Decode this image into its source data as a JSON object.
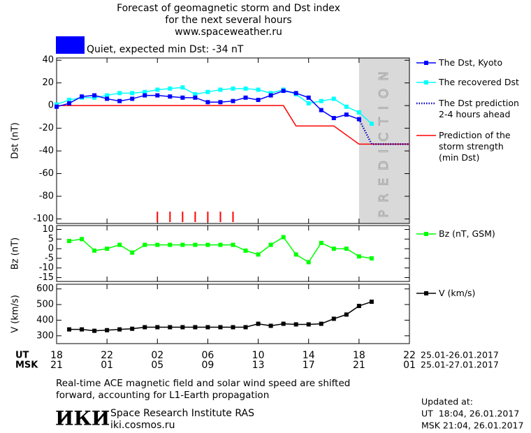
{
  "header": {
    "title_lines": [
      "Forecast of geomagnetic storm and Dst index",
      "for the next several hours",
      "www.spaceweather.ru"
    ],
    "status": {
      "color": "#0000ff",
      "text": "Quiet, expected min Dst: -34 nT"
    }
  },
  "chart_data": [
    {
      "type": "line",
      "ylabel": "Dst (nT)",
      "xlim": [
        0,
        28
      ],
      "ylim": [
        -104,
        42
      ],
      "yticks": [
        40,
        20,
        0,
        -20,
        -40,
        -60,
        -80,
        -100
      ],
      "shade": {
        "xlim": [
          24,
          28
        ],
        "color": "#d9d9d9",
        "label": "PREDICTION"
      },
      "event_markers": {
        "x": [
          8,
          9,
          10,
          11,
          12,
          13,
          14
        ],
        "color": "#ff0000"
      },
      "series": [
        {
          "name": "The Dst, Kyoto",
          "color": "#0000ff",
          "marker": "square",
          "x": [
            0,
            1,
            2,
            3,
            4,
            5,
            6,
            7,
            8,
            9,
            10,
            11,
            12,
            13,
            14,
            15,
            16,
            17,
            18,
            19,
            20,
            21,
            22,
            23,
            24
          ],
          "values": [
            -1,
            2,
            8,
            9,
            6,
            4,
            6,
            9,
            9,
            8,
            7,
            7,
            3,
            3,
            4,
            7,
            5,
            9,
            13,
            11,
            7,
            -4,
            -11,
            -8,
            -12
          ]
        },
        {
          "name": "The recovered Dst",
          "color": "#00ffff",
          "marker": "square",
          "x": [
            0,
            1,
            2,
            3,
            4,
            5,
            6,
            7,
            8,
            9,
            10,
            11,
            12,
            13,
            14,
            15,
            16,
            17,
            18,
            19,
            20,
            21,
            22,
            23,
            24,
            25
          ],
          "values": [
            1,
            5,
            7,
            7,
            9,
            11,
            11,
            12,
            14,
            15,
            16,
            10,
            12,
            14,
            15,
            15,
            14,
            11,
            14,
            10,
            2,
            4,
            6,
            -1,
            -6,
            -16
          ]
        },
        {
          "name": "The Dst prediction\n2-4 hours ahead",
          "color": "#0000c0",
          "dash": "dot",
          "x": [
            24,
            25,
            28
          ],
          "values": [
            -12,
            -34,
            -34
          ]
        },
        {
          "name": "Prediction of the\nstorm strength\n(min Dst)",
          "color": "#ff0000",
          "x": [
            0,
            18,
            19,
            22,
            24,
            28
          ],
          "values": [
            0,
            0,
            -18,
            -18,
            -34,
            -34
          ]
        }
      ]
    },
    {
      "type": "line",
      "ylabel": "Bz (nT)",
      "xlim": [
        0,
        28
      ],
      "ylim": [
        -17,
        12
      ],
      "yticks": [
        10,
        5,
        0,
        -5,
        -10,
        -15
      ],
      "series": [
        {
          "name": "Bz (nT, GSM)",
          "color": "#00ff00",
          "marker": "square",
          "x": [
            1,
            2,
            3,
            4,
            5,
            6,
            7,
            8,
            9,
            10,
            11,
            12,
            13,
            14,
            15,
            16,
            17,
            18,
            19,
            20,
            21,
            22,
            23,
            24,
            25
          ],
          "values": [
            4,
            5,
            -1,
            0,
            2,
            -2,
            2,
            2,
            2,
            2,
            2,
            2,
            2,
            2,
            -1,
            -3,
            2,
            6,
            -3,
            -7,
            3,
            0,
            0,
            -4,
            -5
          ]
        }
      ]
    },
    {
      "type": "line",
      "ylabel": "V (km/s)",
      "xlim": [
        0,
        28
      ],
      "ylim": [
        250,
        630
      ],
      "yticks": [
        600,
        500,
        400,
        300
      ],
      "xticks": [
        {
          "value": 0,
          "label": "18"
        },
        {
          "value": 4,
          "label": "22"
        },
        {
          "value": 8,
          "label": "02"
        },
        {
          "value": 12,
          "label": "06"
        },
        {
          "value": 16,
          "label": "10"
        },
        {
          "value": 20,
          "label": "14"
        },
        {
          "value": 24,
          "label": "18"
        },
        {
          "value": 28,
          "label": "22"
        }
      ],
      "axis_rows": {
        "ut": {
          "label": "UT",
          "range": "25.01-26.01.2017"
        },
        "msk": {
          "label": "MSK",
          "range": "25.01-27.01.2017",
          "tick_labels": [
            "21",
            "01",
            "05",
            "09",
            "13",
            "17",
            "21",
            "01"
          ]
        }
      },
      "series": [
        {
          "name": "V (km/s)",
          "color": "#000000",
          "marker": "square",
          "x": [
            1,
            2,
            3,
            4,
            5,
            6,
            7,
            8,
            9,
            10,
            11,
            12,
            13,
            14,
            15,
            16,
            17,
            18,
            19,
            20,
            21,
            22,
            23,
            24,
            25
          ],
          "values": [
            341,
            341,
            332,
            336,
            341,
            345,
            355,
            355,
            355,
            355,
            355,
            355,
            355,
            355,
            355,
            377,
            364,
            377,
            373,
            373,
            377,
            409,
            436,
            491,
            518
          ]
        }
      ]
    }
  ],
  "footer": {
    "note_lines": [
      "Real-time ACE magnetic field and solar wind speed are shifted",
      "forward, accounting for L1-Earth propagation"
    ],
    "logo": "ИКИ",
    "institute": "Space Research Institute RAS",
    "url": "iki.cosmos.ru",
    "updated": [
      "Updated at:",
      "UT  18:04, 26.01.2017",
      "MSK 21:04, 26.01.2017"
    ]
  }
}
